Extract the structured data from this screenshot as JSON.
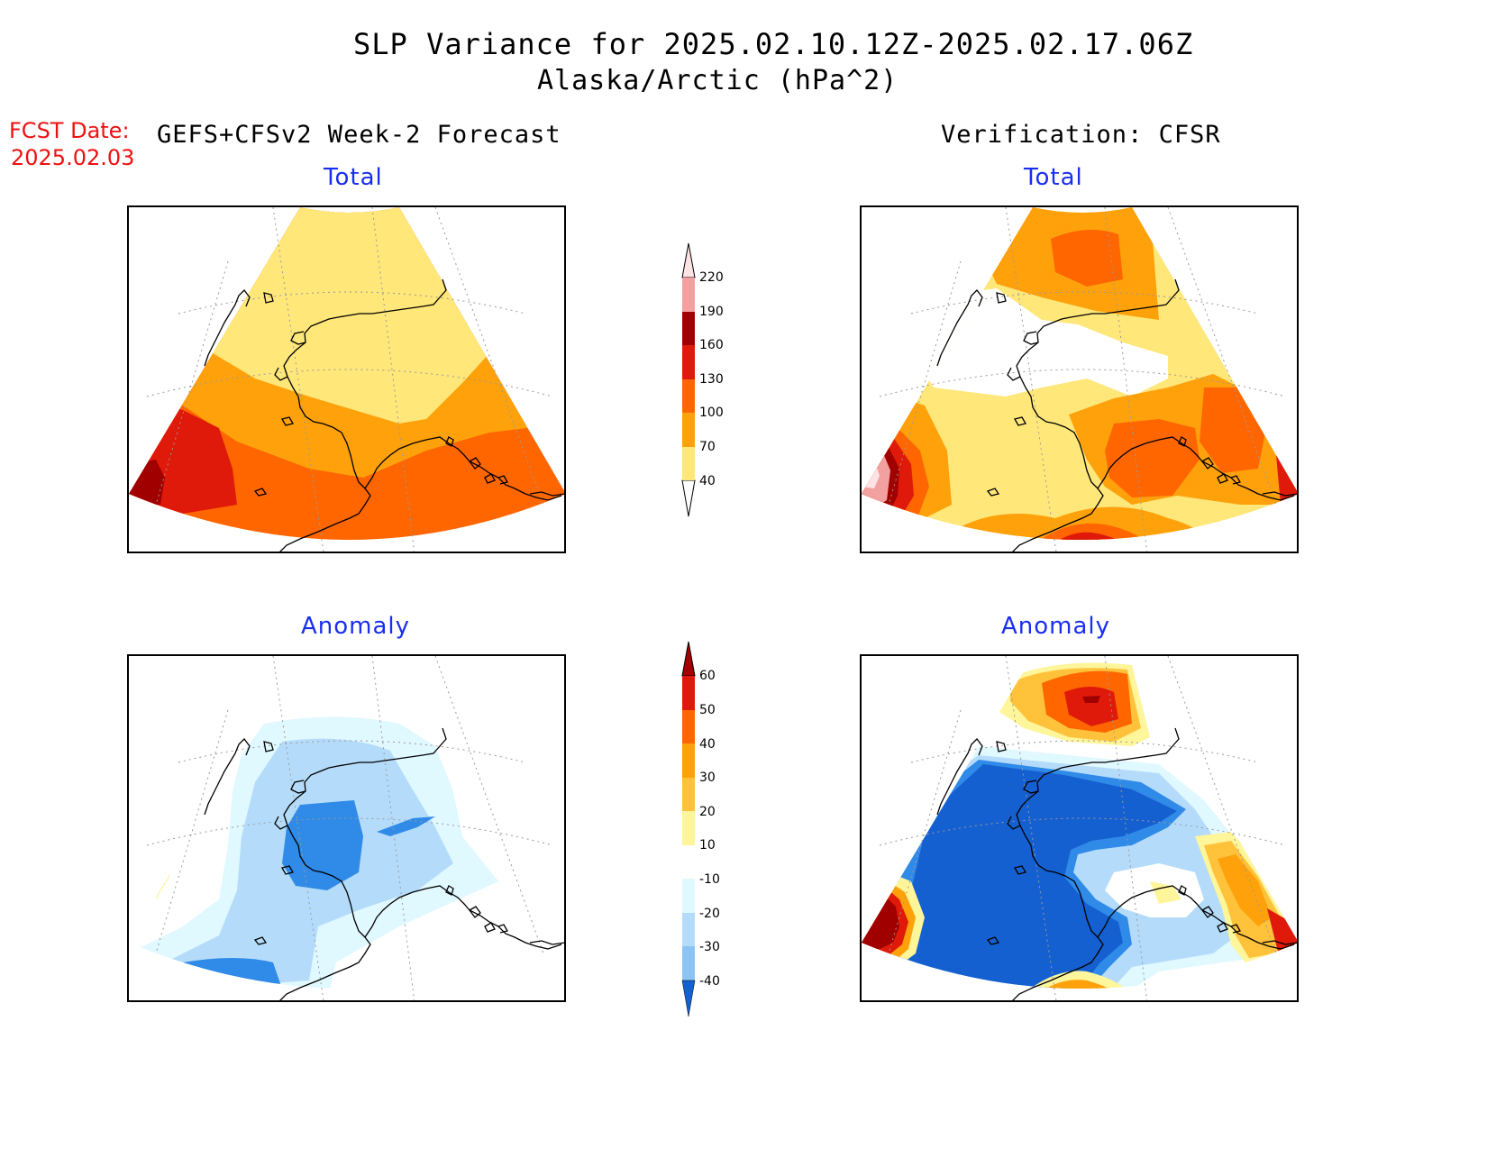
{
  "header": {
    "title": "SLP Variance for 2025.02.10.12Z-2025.02.17.06Z",
    "subtitle": "Alaska/Arctic (hPa^2)"
  },
  "fcst": {
    "label": "FCST Date:",
    "date": "2025.02.03"
  },
  "columns": {
    "forecast": "GEFS+CFSv2 Week-2 Forecast",
    "verification": "Verification: CFSR"
  },
  "panels": {
    "fc_total": "Total",
    "vf_total": "Total",
    "fc_anom": "Anomaly",
    "vf_anom": "Anomaly"
  },
  "colorbar_total": {
    "labels": [
      "220",
      "190",
      "160",
      "130",
      "100",
      "70",
      "40"
    ],
    "colors": [
      "#fde3e3",
      "#f2a0a0",
      "#a00000",
      "#e01a0a",
      "#ff6600",
      "#ffa10a",
      "#ffe77a",
      "#ffffff"
    ]
  },
  "colorbar_anom": {
    "labels": [
      "60",
      "50",
      "40",
      "30",
      "20",
      "10",
      "-10",
      "-20",
      "-30",
      "-40"
    ],
    "colors": [
      "#a50000",
      "#e01a0a",
      "#ff6600",
      "#ffa10a",
      "#ffc23a",
      "#fff59a",
      "#ffffff",
      "#e0f8ff",
      "#b4dcfa",
      "#8cc4f5",
      "#2f8ae8",
      "#1560d0"
    ]
  }
}
